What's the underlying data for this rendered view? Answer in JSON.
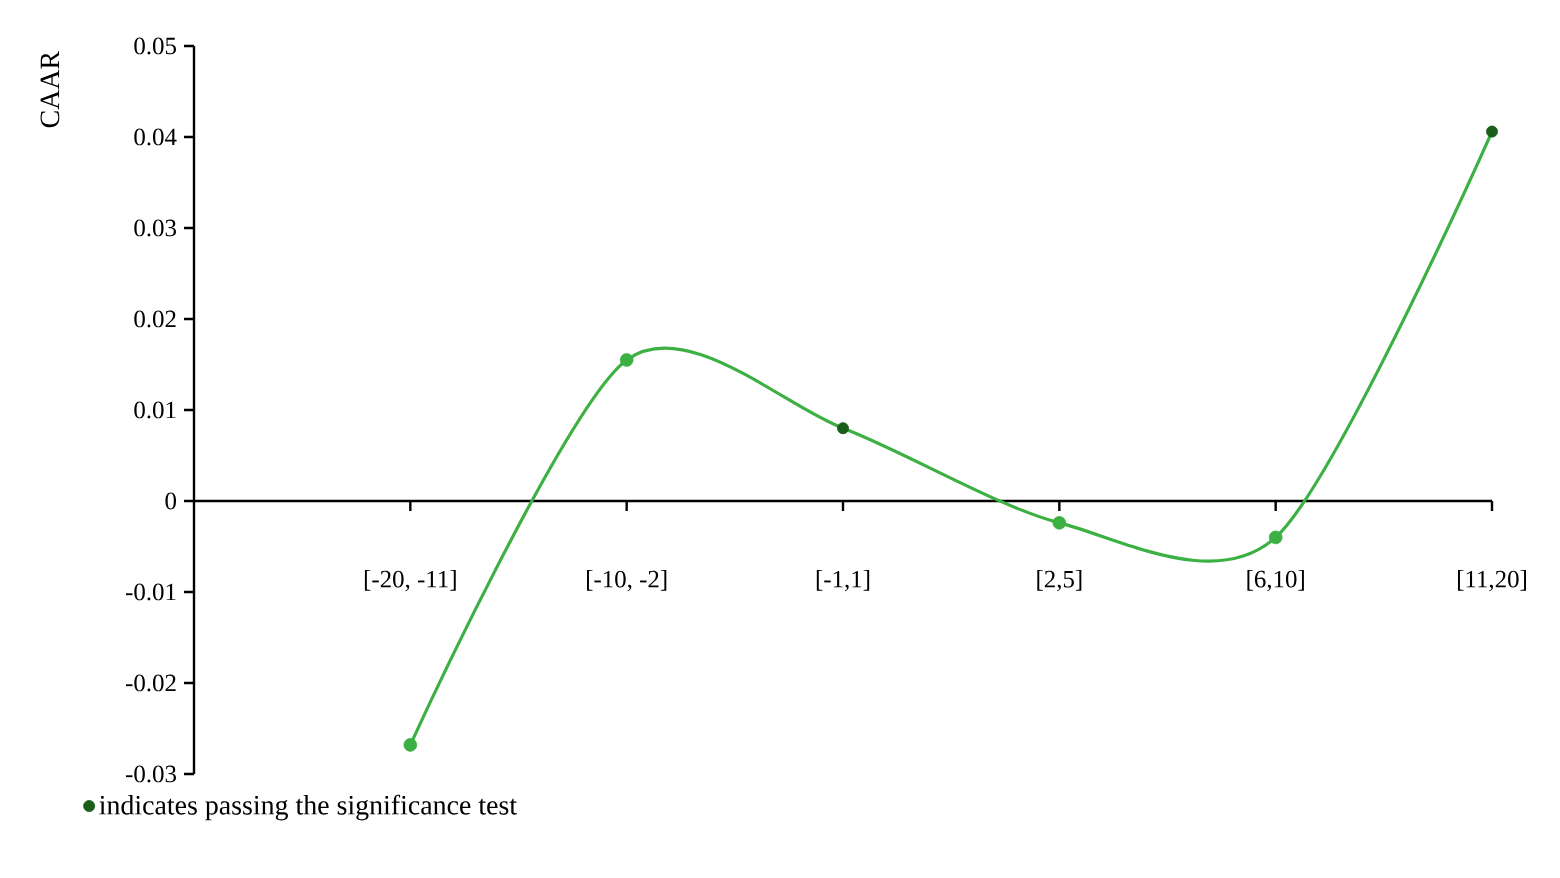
{
  "chart_data": {
    "type": "line",
    "ylabel": "CAAR",
    "categories": [
      "[-20, -11]",
      "[-10, -2]",
      "[-1,1]",
      "[2,5]",
      "[6,10]",
      "[11,20]"
    ],
    "series": [
      {
        "color": "#3cb043",
        "marker": "none",
        "values": [
          -0.0268,
          0.0155,
          0.008,
          -0.0024,
          -0.004,
          0.0406
        ]
      },
      {
        "type": "scatter",
        "color": "#3cb043",
        "marker": "circle",
        "values": [
          -0.0268,
          0.0155,
          null,
          -0.0024,
          -0.004,
          null
        ]
      },
      {
        "type": "scatter",
        "name": "indicates passing the significance test",
        "color": "#1a5e1a",
        "marker": "circle",
        "values": [
          null,
          null,
          0.008,
          null,
          null,
          0.0406
        ]
      }
    ],
    "ylim": [
      -0.03,
      0.05
    ],
    "yticks": [
      -0.03,
      -0.02,
      -0.01,
      0,
      0.01,
      0.02,
      0.03,
      0.04,
      0.05
    ],
    "legend": "bottom left"
  }
}
